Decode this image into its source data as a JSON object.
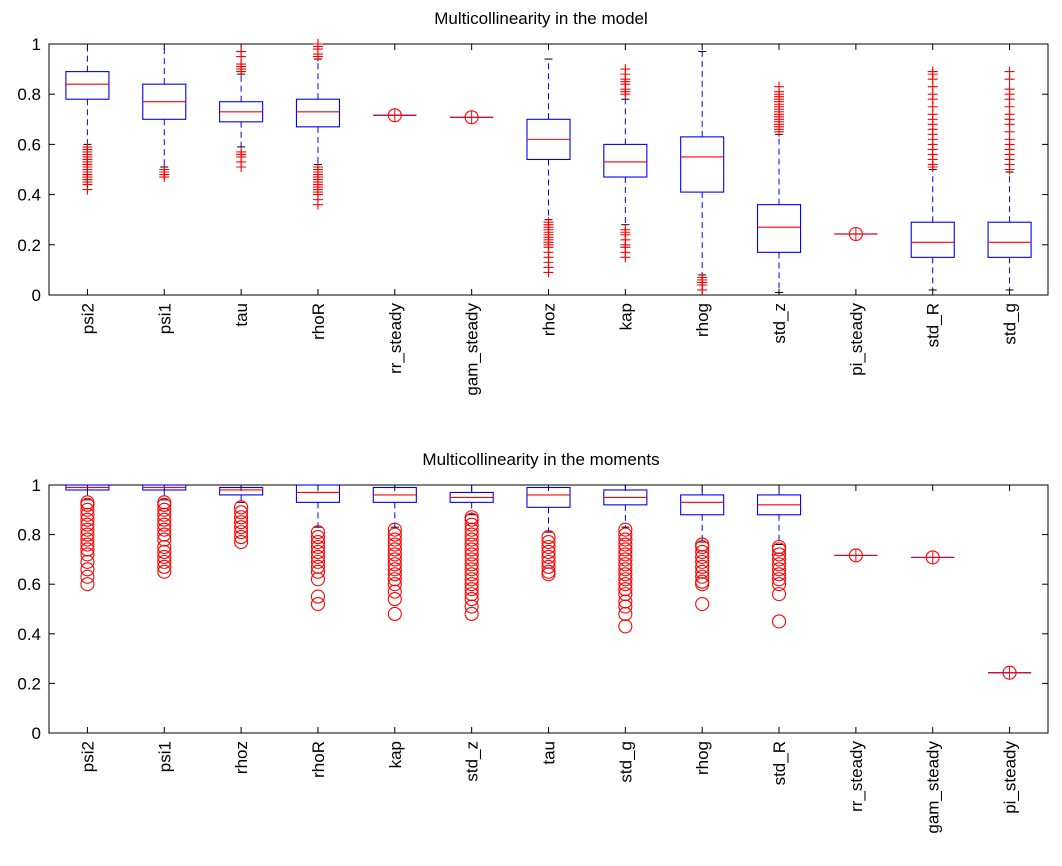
{
  "colors": {
    "box": "#0000ff",
    "median": "#ff0000",
    "outlier": "#ff0000",
    "axis": "#000000",
    "background": "#ffffff"
  },
  "chart_data": [
    {
      "type": "box",
      "title": "Multicollinearity in the model",
      "ylim": [
        0,
        1
      ],
      "yticks": [
        0,
        0.2,
        0.4,
        0.6,
        0.8,
        1
      ],
      "yticklabels": [
        "0",
        "0.2",
        "0.4",
        "0.6",
        "0.8",
        "1"
      ],
      "grid": false,
      "categories": [
        "psi2",
        "psi1",
        "tau",
        "rhoR",
        "rr_steady",
        "gam_steady",
        "rhoz",
        "kap",
        "rhog",
        "std_z",
        "pi_steady",
        "std_R",
        "std_g"
      ],
      "outlier_marker": "plus",
      "boxes": [
        {
          "min": 0.6,
          "q1": 0.78,
          "median": 0.84,
          "q3": 0.89,
          "max": 1.0,
          "outliers": [
            0.42,
            0.44,
            0.45,
            0.46,
            0.47,
            0.48,
            0.49,
            0.5,
            0.51,
            0.52,
            0.53,
            0.54,
            0.55,
            0.56,
            0.57,
            0.58,
            0.59
          ]
        },
        {
          "min": 0.51,
          "q1": 0.7,
          "median": 0.77,
          "q3": 0.84,
          "max": 1.0,
          "outliers": [
            0.47,
            0.48,
            0.49,
            0.5
          ]
        },
        {
          "min": 0.59,
          "q1": 0.69,
          "median": 0.73,
          "q3": 0.77,
          "max": 0.88,
          "outliers": [
            0.51,
            0.53,
            0.55,
            0.56,
            0.57,
            0.89,
            0.9,
            0.91,
            0.92,
            0.95,
            0.97
          ]
        },
        {
          "min": 0.52,
          "q1": 0.67,
          "median": 0.73,
          "q3": 0.78,
          "max": 0.94,
          "outliers": [
            0.36,
            0.38,
            0.4,
            0.41,
            0.42,
            0.43,
            0.44,
            0.45,
            0.46,
            0.47,
            0.48,
            0.49,
            0.5,
            0.51,
            0.95,
            0.96,
            0.98,
            0.99,
            1.0
          ]
        },
        {
          "min": 0.716,
          "q1": 0.716,
          "median": 0.716,
          "q3": 0.716,
          "max": 0.716,
          "outliers": [],
          "circle": 0.716
        },
        {
          "min": 0.708,
          "q1": 0.708,
          "median": 0.708,
          "q3": 0.708,
          "max": 0.708,
          "outliers": [],
          "circle": 0.708
        },
        {
          "min": 0.3,
          "q1": 0.54,
          "median": 0.62,
          "q3": 0.7,
          "max": 0.94,
          "outliers": [
            0.09,
            0.11,
            0.13,
            0.15,
            0.17,
            0.19,
            0.2,
            0.21,
            0.22,
            0.23,
            0.24,
            0.25,
            0.26,
            0.27,
            0.28,
            0.29
          ]
        },
        {
          "min": 0.28,
          "q1": 0.47,
          "median": 0.53,
          "q3": 0.6,
          "max": 0.78,
          "outliers": [
            0.15,
            0.17,
            0.19,
            0.2,
            0.22,
            0.24,
            0.25,
            0.26,
            0.8,
            0.81,
            0.82,
            0.84,
            0.85,
            0.86,
            0.88,
            0.9
          ]
        },
        {
          "min": 0.08,
          "q1": 0.41,
          "median": 0.55,
          "q3": 0.63,
          "max": 0.97,
          "outliers": [
            0.02,
            0.04,
            0.05,
            0.06,
            0.07
          ]
        },
        {
          "min": 0.01,
          "q1": 0.17,
          "median": 0.27,
          "q3": 0.36,
          "max": 0.64,
          "outliers": [
            0.65,
            0.66,
            0.67,
            0.68,
            0.69,
            0.7,
            0.71,
            0.72,
            0.73,
            0.74,
            0.75,
            0.76,
            0.77,
            0.78,
            0.79,
            0.8,
            0.81,
            0.83
          ]
        },
        {
          "min": 0.243,
          "q1": 0.243,
          "median": 0.243,
          "q3": 0.243,
          "max": 0.243,
          "outliers": [],
          "circle": 0.243
        },
        {
          "min": 0.02,
          "q1": 0.15,
          "median": 0.21,
          "q3": 0.29,
          "max": 0.5,
          "outliers": [
            0.51,
            0.52,
            0.54,
            0.56,
            0.58,
            0.6,
            0.62,
            0.64,
            0.66,
            0.68,
            0.7,
            0.72,
            0.75,
            0.78,
            0.8,
            0.83,
            0.86,
            0.88,
            0.89
          ]
        },
        {
          "min": 0.02,
          "q1": 0.15,
          "median": 0.21,
          "q3": 0.29,
          "max": 0.49,
          "outliers": [
            0.5,
            0.52,
            0.54,
            0.56,
            0.58,
            0.6,
            0.62,
            0.65,
            0.68,
            0.7,
            0.72,
            0.75,
            0.78,
            0.8,
            0.82,
            0.86,
            0.89
          ]
        }
      ]
    },
    {
      "type": "box",
      "title": "Multicollinearity in the moments",
      "ylim": [
        0,
        1
      ],
      "yticks": [
        0,
        0.2,
        0.4,
        0.6,
        0.8,
        1
      ],
      "yticklabels": [
        "0",
        "0.2",
        "0.4",
        "0.6",
        "0.8",
        "1"
      ],
      "grid": false,
      "categories": [
        "psi2",
        "psi1",
        "rhoz",
        "rhoR",
        "kap",
        "std_z",
        "tau",
        "std_g",
        "rhog",
        "std_R",
        "rr_steady",
        "gam_steady",
        "pi_steady"
      ],
      "outlier_marker": "circle",
      "boxes": [
        {
          "min": 0.94,
          "q1": 0.98,
          "median": 0.99,
          "q3": 1.0,
          "max": 1.0,
          "outliers": [
            0.6,
            0.63,
            0.66,
            0.69,
            0.72,
            0.74,
            0.76,
            0.78,
            0.8,
            0.82,
            0.84,
            0.86,
            0.88,
            0.9,
            0.92,
            0.93
          ]
        },
        {
          "min": 0.94,
          "q1": 0.98,
          "median": 0.99,
          "q3": 1.0,
          "max": 1.0,
          "outliers": [
            0.65,
            0.67,
            0.69,
            0.71,
            0.73,
            0.75,
            0.78,
            0.8,
            0.82,
            0.84,
            0.86,
            0.88,
            0.9,
            0.92,
            0.93
          ]
        },
        {
          "min": 0.93,
          "q1": 0.96,
          "median": 0.98,
          "q3": 0.99,
          "max": 1.0,
          "outliers": [
            0.77,
            0.79,
            0.81,
            0.83,
            0.85,
            0.87,
            0.89,
            0.91
          ]
        },
        {
          "min": 0.83,
          "q1": 0.93,
          "median": 0.97,
          "q3": 1.0,
          "max": 1.0,
          "outliers": [
            0.52,
            0.55,
            0.62,
            0.65,
            0.67,
            0.69,
            0.71,
            0.73,
            0.75,
            0.77,
            0.79,
            0.81
          ]
        },
        {
          "min": 0.83,
          "q1": 0.93,
          "median": 0.96,
          "q3": 0.99,
          "max": 1.0,
          "outliers": [
            0.48,
            0.54,
            0.57,
            0.6,
            0.62,
            0.64,
            0.66,
            0.68,
            0.7,
            0.72,
            0.74,
            0.76,
            0.78,
            0.8,
            0.82
          ]
        },
        {
          "min": 0.88,
          "q1": 0.93,
          "median": 0.95,
          "q3": 0.97,
          "max": 1.0,
          "outliers": [
            0.48,
            0.51,
            0.54,
            0.56,
            0.58,
            0.6,
            0.62,
            0.64,
            0.66,
            0.68,
            0.7,
            0.72,
            0.74,
            0.76,
            0.78,
            0.8,
            0.82,
            0.84,
            0.86,
            0.87
          ]
        },
        {
          "min": 0.81,
          "q1": 0.91,
          "median": 0.96,
          "q3": 0.99,
          "max": 1.0,
          "outliers": [
            0.64,
            0.65,
            0.67,
            0.69,
            0.71,
            0.73,
            0.75,
            0.77,
            0.79
          ]
        },
        {
          "min": 0.83,
          "q1": 0.92,
          "median": 0.95,
          "q3": 0.98,
          "max": 1.0,
          "outliers": [
            0.43,
            0.48,
            0.51,
            0.53,
            0.56,
            0.58,
            0.6,
            0.62,
            0.64,
            0.66,
            0.68,
            0.7,
            0.72,
            0.74,
            0.76,
            0.78,
            0.8,
            0.82
          ]
        },
        {
          "min": 0.77,
          "q1": 0.88,
          "median": 0.93,
          "q3": 0.96,
          "max": 1.0,
          "outliers": [
            0.52,
            0.6,
            0.61,
            0.63,
            0.65,
            0.67,
            0.69,
            0.71,
            0.73,
            0.75,
            0.76
          ]
        },
        {
          "min": 0.76,
          "q1": 0.88,
          "median": 0.92,
          "q3": 0.96,
          "max": 1.0,
          "outliers": [
            0.45,
            0.56,
            0.6,
            0.62,
            0.64,
            0.66,
            0.68,
            0.7,
            0.72,
            0.74,
            0.75
          ]
        },
        {
          "min": 0.716,
          "q1": 0.716,
          "median": 0.716,
          "q3": 0.716,
          "max": 0.716,
          "outliers": [],
          "circle": 0.716
        },
        {
          "min": 0.708,
          "q1": 0.708,
          "median": 0.708,
          "q3": 0.708,
          "max": 0.708,
          "outliers": [],
          "circle": 0.708
        },
        {
          "min": 0.243,
          "q1": 0.243,
          "median": 0.243,
          "q3": 0.243,
          "max": 0.243,
          "outliers": [],
          "circle": 0.243
        }
      ]
    }
  ]
}
